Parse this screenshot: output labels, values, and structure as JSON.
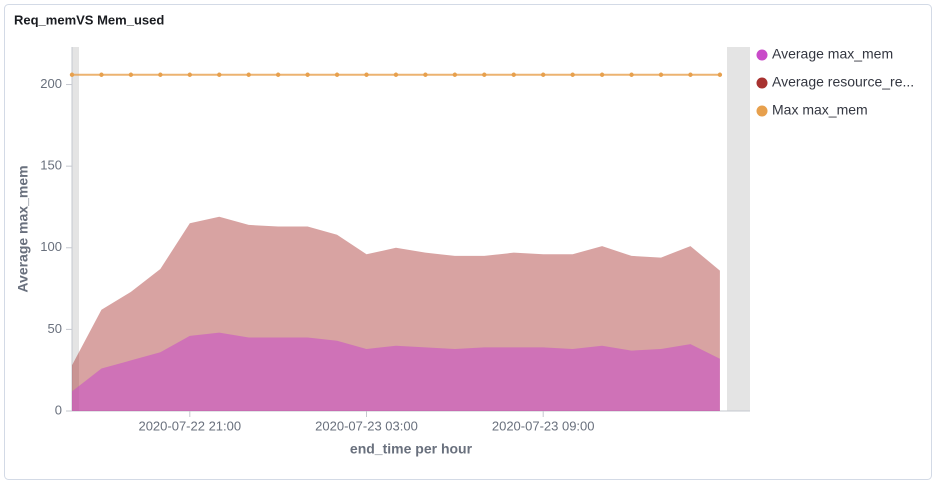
{
  "chart_data": {
    "type": "area",
    "title": "Req_memVS Mem_used",
    "x_label": "end_time per hour",
    "y_label": "Average max_mem",
    "x": [
      "2020-07-22 17:00",
      "2020-07-22 18:00",
      "2020-07-22 19:00",
      "2020-07-22 20:00",
      "2020-07-22 21:00",
      "2020-07-22 22:00",
      "2020-07-22 23:00",
      "2020-07-23 00:00",
      "2020-07-23 01:00",
      "2020-07-23 02:00",
      "2020-07-23 03:00",
      "2020-07-23 04:00",
      "2020-07-23 05:00",
      "2020-07-23 06:00",
      "2020-07-23 07:00",
      "2020-07-23 08:00",
      "2020-07-23 09:00",
      "2020-07-23 10:00",
      "2020-07-23 11:00",
      "2020-07-23 12:00",
      "2020-07-23 13:00",
      "2020-07-23 14:00",
      "2020-07-23 15:00"
    ],
    "xticks": [
      "2020-07-22 21:00",
      "2020-07-23 03:00",
      "2020-07-23 09:00"
    ],
    "ylim": [
      0,
      223
    ],
    "yticks": [
      0,
      50,
      100,
      150,
      200
    ],
    "legend": "right",
    "series": [
      {
        "name": "Average max_mem",
        "color": "#c94bc9",
        "values": [
          12,
          26,
          31,
          36,
          46,
          48,
          45,
          45,
          45,
          43,
          38,
          40,
          39,
          38,
          39,
          39,
          39,
          38,
          40,
          37,
          38,
          41,
          32
        ]
      },
      {
        "name": "Average resource_re...",
        "color": "#a83230",
        "values": [
          28,
          62,
          73,
          87,
          115,
          119,
          114,
          113,
          113,
          108,
          96,
          100,
          97,
          95,
          95,
          97,
          96,
          96,
          101,
          95,
          94,
          101,
          86
        ]
      },
      {
        "name": "Max max_mem",
        "color": "#e7a04d",
        "line": true,
        "values": [
          206,
          206,
          206,
          206,
          206,
          206,
          206,
          206,
          206,
          206,
          206,
          206,
          206,
          206,
          206,
          206,
          206,
          206,
          206,
          206,
          206,
          206,
          206
        ]
      }
    ]
  }
}
